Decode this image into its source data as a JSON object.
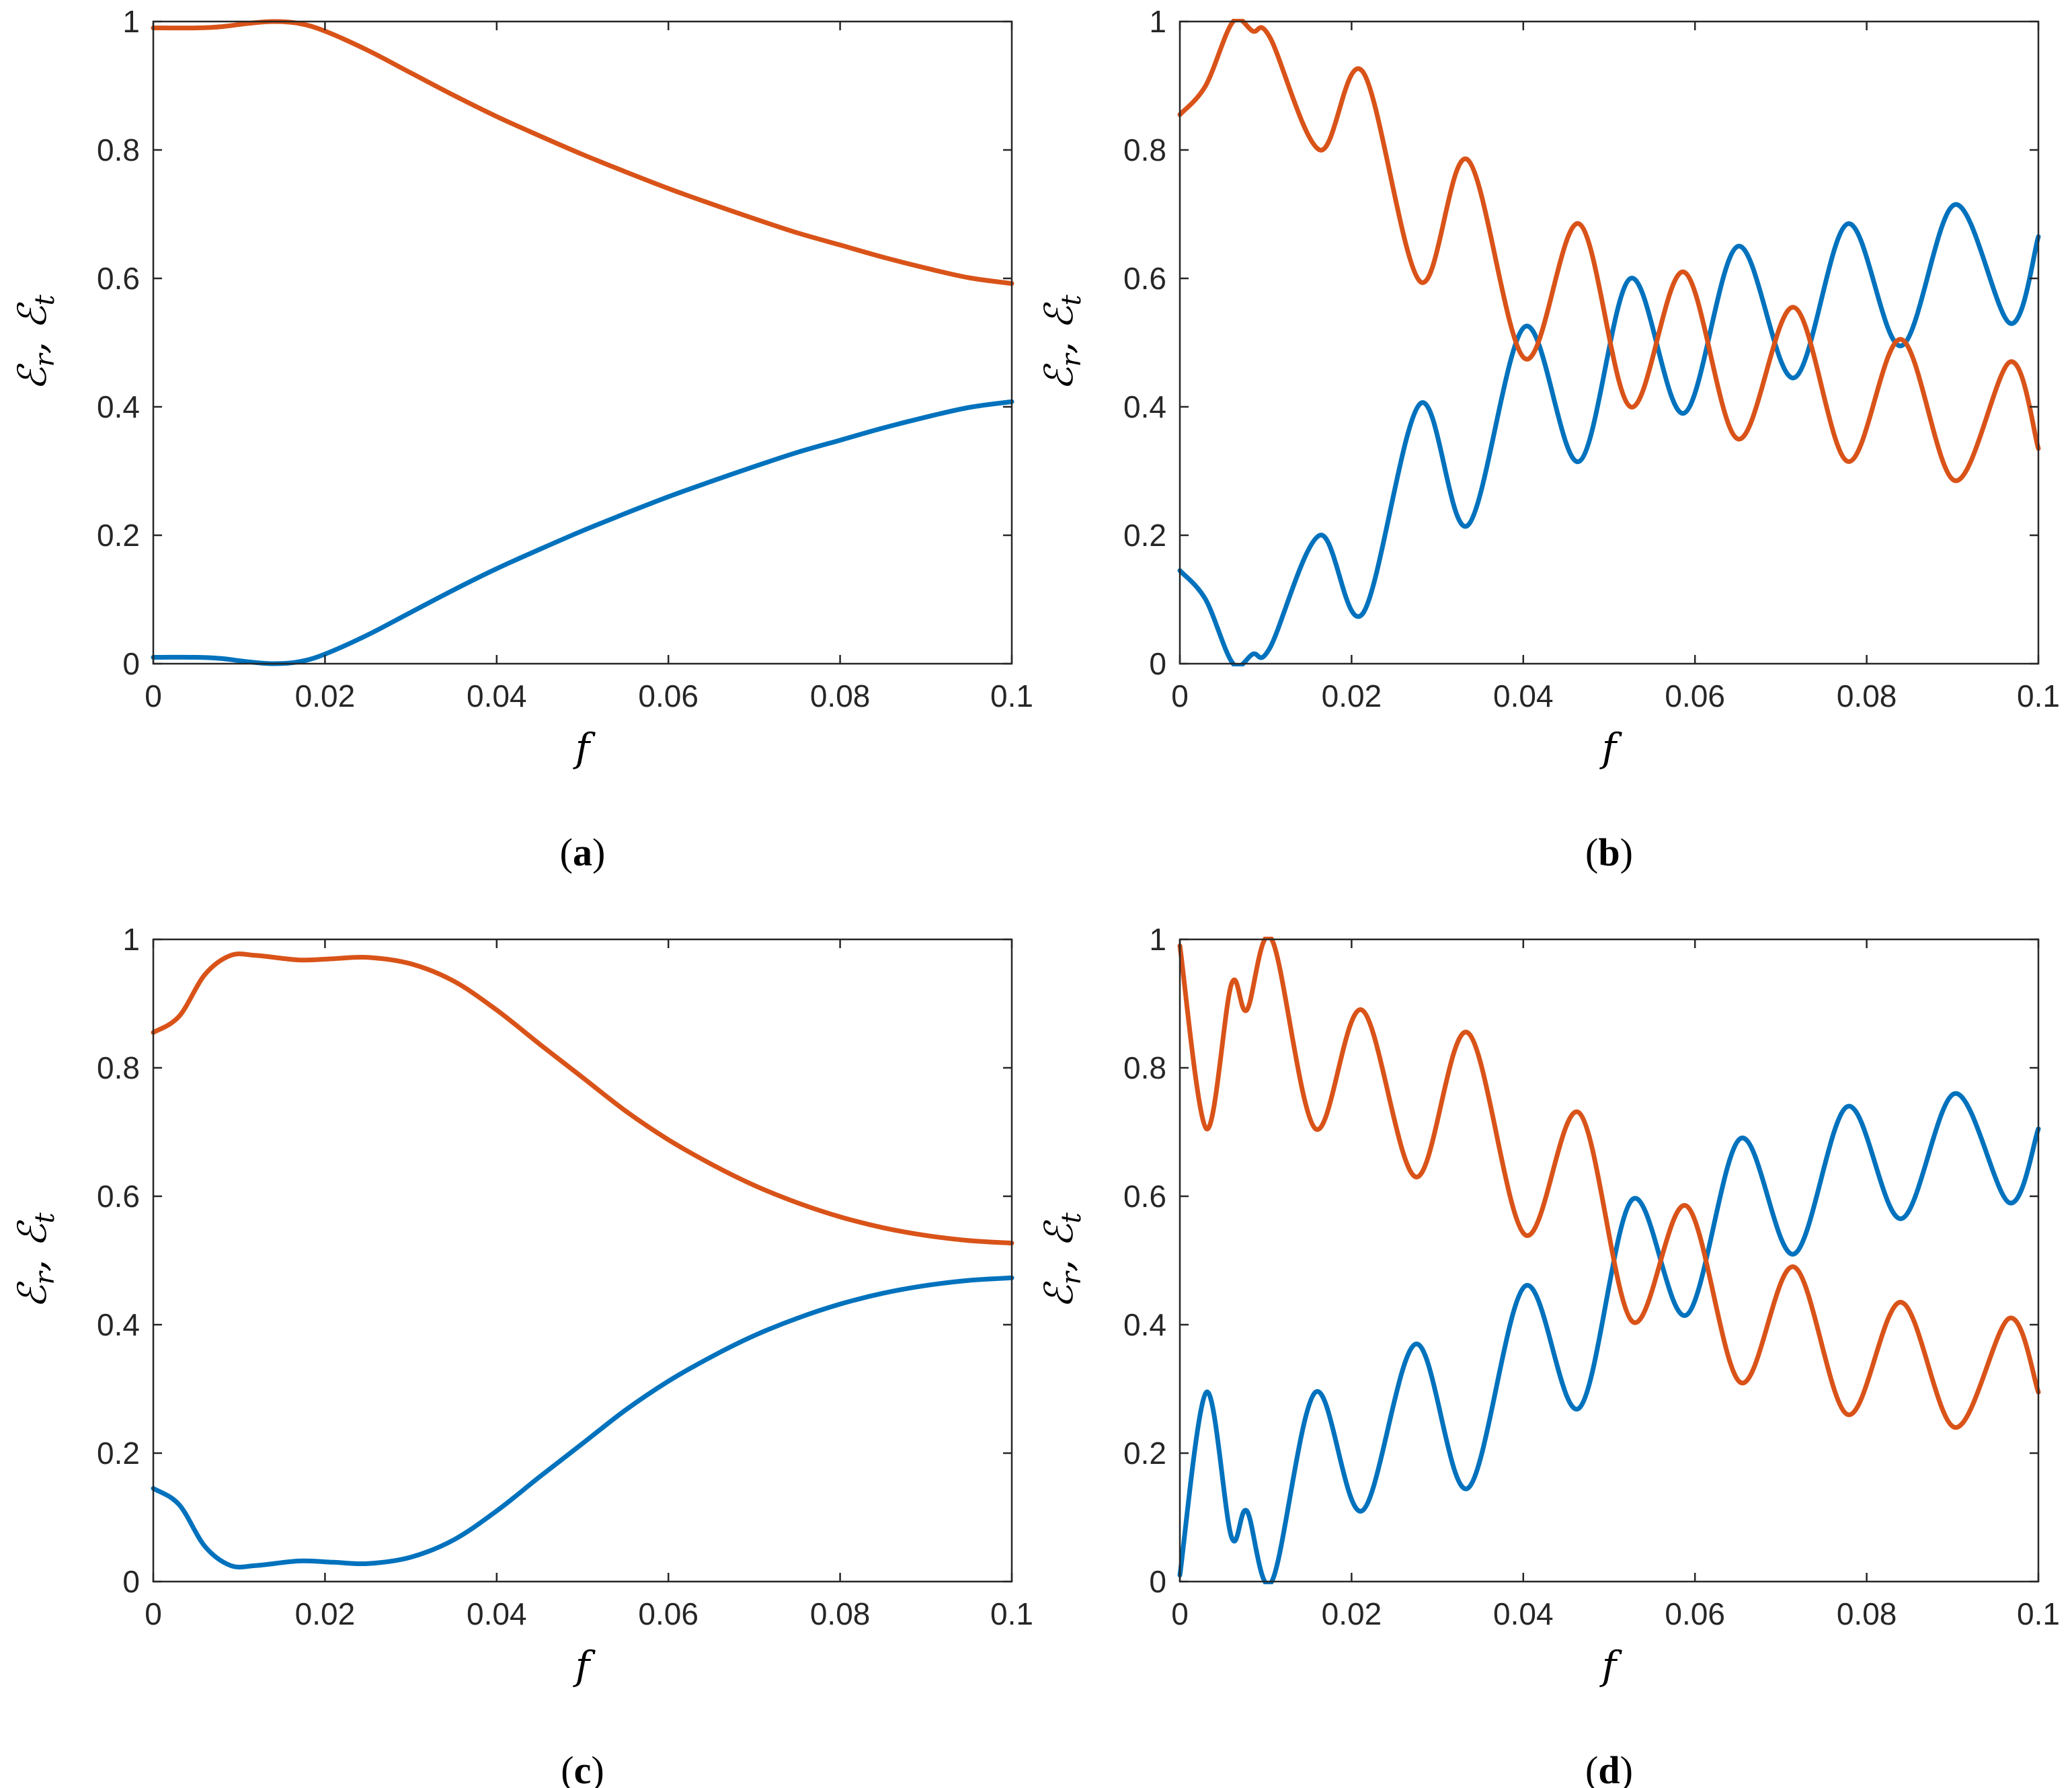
{
  "colors": {
    "blue": "#0072BD",
    "orange": "#D95319"
  },
  "chart_data": [
    {
      "type": "line",
      "panel_label": "a",
      "xlabel": "f",
      "ylabel": {
        "main": "ℰ",
        "sub1": "r",
        "sep": ", ",
        "sub2": "t"
      },
      "xlim": [
        0,
        0.1
      ],
      "ylim": [
        0,
        1
      ],
      "xticks": [
        0,
        0.02,
        0.04,
        0.06,
        0.08,
        0.1
      ],
      "xtick_labels": [
        "0",
        "0.02",
        "0.04",
        "0.06",
        "0.08",
        "0.1"
      ],
      "yticks": [
        0,
        0.2,
        0.4,
        0.6,
        0.8,
        1
      ],
      "ytick_labels": [
        "0",
        "0.2",
        "0.4",
        "0.6",
        "0.8",
        "1"
      ],
      "grid": false,
      "series": [
        {
          "color": "#0072BD",
          "x": [
            0,
            0.005,
            0.008,
            0.011,
            0.014,
            0.017,
            0.02,
            0.025,
            0.03,
            0.035,
            0.04,
            0.045,
            0.05,
            0.055,
            0.06,
            0.065,
            0.07,
            0.075,
            0.08,
            0.085,
            0.09,
            0.095,
            0.1
          ],
          "y": [
            0.01,
            0.01,
            0.008,
            0.003,
            0.0,
            0.003,
            0.015,
            0.045,
            0.08,
            0.115,
            0.148,
            0.178,
            0.207,
            0.234,
            0.26,
            0.284,
            0.307,
            0.329,
            0.348,
            0.367,
            0.384,
            0.399,
            0.408
          ]
        },
        {
          "color": "#D95319",
          "x": [
            0,
            0.005,
            0.008,
            0.011,
            0.014,
            0.017,
            0.02,
            0.025,
            0.03,
            0.035,
            0.04,
            0.045,
            0.05,
            0.055,
            0.06,
            0.065,
            0.07,
            0.075,
            0.08,
            0.085,
            0.09,
            0.095,
            0.1
          ],
          "y": [
            0.99,
            0.99,
            0.992,
            0.997,
            1.0,
            0.997,
            0.985,
            0.955,
            0.92,
            0.885,
            0.852,
            0.822,
            0.793,
            0.766,
            0.74,
            0.716,
            0.693,
            0.671,
            0.652,
            0.633,
            0.616,
            0.601,
            0.592
          ]
        }
      ]
    },
    {
      "type": "line",
      "panel_label": "b",
      "xlabel": "f",
      "ylabel": {
        "main": "ℰ",
        "sub1": "r",
        "sep": ", ",
        "sub2": "t"
      },
      "xlim": [
        0,
        0.1
      ],
      "ylim": [
        0,
        1
      ],
      "xticks": [
        0,
        0.02,
        0.04,
        0.06,
        0.08,
        0.1
      ],
      "xtick_labels": [
        "0",
        "0.02",
        "0.04",
        "0.06",
        "0.08",
        "0.1"
      ],
      "yticks": [
        0,
        0.2,
        0.4,
        0.6,
        0.8,
        1
      ],
      "ytick_labels": [
        "0",
        "0.2",
        "0.4",
        "0.6",
        "0.8",
        "1"
      ],
      "grid": false,
      "series": [
        {
          "color": "#0072BD",
          "x": [
            0,
            0.003,
            0.0062,
            0.0085,
            0.0105,
            0.0163,
            0.0213,
            0.028,
            0.0335,
            0.0402,
            0.0465,
            0.0525,
            0.0587,
            0.065,
            0.0715,
            0.0778,
            0.084,
            0.0903,
            0.0967,
            0.1
          ],
          "y": [
            0.145,
            0.1,
            0.0,
            0.015,
            0.025,
            0.2,
            0.078,
            0.405,
            0.215,
            0.525,
            0.315,
            0.6,
            0.39,
            0.65,
            0.445,
            0.685,
            0.495,
            0.715,
            0.53,
            0.665
          ]
        },
        {
          "color": "#D95319",
          "x": [
            0,
            0.003,
            0.0062,
            0.0085,
            0.0105,
            0.0163,
            0.0213,
            0.028,
            0.0335,
            0.0402,
            0.0465,
            0.0525,
            0.0587,
            0.065,
            0.0715,
            0.0778,
            0.084,
            0.0903,
            0.0967,
            0.1
          ],
          "y": [
            0.855,
            0.9,
            1.0,
            0.985,
            0.975,
            0.8,
            0.922,
            0.595,
            0.785,
            0.475,
            0.685,
            0.4,
            0.61,
            0.35,
            0.555,
            0.315,
            0.505,
            0.285,
            0.47,
            0.335
          ]
        }
      ]
    },
    {
      "type": "line",
      "panel_label": "c",
      "xlabel": "f",
      "ylabel": {
        "main": "ℰ",
        "sub1": "r",
        "sep": ", ",
        "sub2": "t"
      },
      "xlim": [
        0,
        0.1
      ],
      "ylim": [
        0,
        1
      ],
      "xticks": [
        0,
        0.02,
        0.04,
        0.06,
        0.08,
        0.1
      ],
      "xtick_labels": [
        "0",
        "0.02",
        "0.04",
        "0.06",
        "0.08",
        "0.1"
      ],
      "yticks": [
        0,
        0.2,
        0.4,
        0.6,
        0.8,
        1
      ],
      "ytick_labels": [
        "0",
        "0.2",
        "0.4",
        "0.6",
        "0.8",
        "1"
      ],
      "grid": false,
      "series": [
        {
          "color": "#0072BD",
          "x": [
            0,
            0.003,
            0.006,
            0.009,
            0.012,
            0.017,
            0.021,
            0.025,
            0.03,
            0.035,
            0.04,
            0.045,
            0.05,
            0.055,
            0.06,
            0.065,
            0.07,
            0.075,
            0.08,
            0.085,
            0.09,
            0.095,
            0.1
          ],
          "y": [
            0.145,
            0.12,
            0.055,
            0.025,
            0.025,
            0.032,
            0.03,
            0.028,
            0.038,
            0.065,
            0.11,
            0.163,
            0.215,
            0.267,
            0.312,
            0.35,
            0.383,
            0.41,
            0.432,
            0.449,
            0.461,
            0.469,
            0.473
          ]
        },
        {
          "color": "#D95319",
          "x": [
            0,
            0.003,
            0.006,
            0.009,
            0.012,
            0.017,
            0.021,
            0.025,
            0.03,
            0.035,
            0.04,
            0.045,
            0.05,
            0.055,
            0.06,
            0.065,
            0.07,
            0.075,
            0.08,
            0.085,
            0.09,
            0.095,
            0.1
          ],
          "y": [
            0.855,
            0.88,
            0.945,
            0.975,
            0.975,
            0.968,
            0.97,
            0.972,
            0.962,
            0.935,
            0.89,
            0.837,
            0.785,
            0.733,
            0.688,
            0.65,
            0.617,
            0.59,
            0.568,
            0.551,
            0.539,
            0.531,
            0.527
          ]
        }
      ]
    },
    {
      "type": "line",
      "panel_label": "d",
      "xlabel": "f",
      "ylabel": {
        "main": "ℰ",
        "sub1": "r",
        "sep": ", ",
        "sub2": "t"
      },
      "xlim": [
        0,
        0.1
      ],
      "ylim": [
        0,
        1
      ],
      "xticks": [
        0,
        0.02,
        0.04,
        0.06,
        0.08,
        0.1
      ],
      "xtick_labels": [
        "0",
        "0.02",
        "0.04",
        "0.06",
        "0.08",
        "0.1"
      ],
      "yticks": [
        0,
        0.2,
        0.4,
        0.6,
        0.8,
        1
      ],
      "ytick_labels": [
        "0",
        "0.2",
        "0.4",
        "0.6",
        "0.8",
        "1"
      ],
      "grid": false,
      "series": [
        {
          "color": "#0072BD",
          "x": [
            0,
            0.0031,
            0.006,
            0.0078,
            0.0107,
            0.0158,
            0.0212,
            0.0275,
            0.0335,
            0.0402,
            0.0465,
            0.0527,
            0.059,
            0.0653,
            0.0715,
            0.0778,
            0.084,
            0.0903,
            0.0966,
            0.1
          ],
          "y": [
            0.01,
            0.295,
            0.07,
            0.11,
            0.0,
            0.295,
            0.11,
            0.37,
            0.145,
            0.46,
            0.27,
            0.595,
            0.415,
            0.69,
            0.51,
            0.74,
            0.565,
            0.76,
            0.59,
            0.705
          ]
        },
        {
          "color": "#D95319",
          "x": [
            0,
            0.0031,
            0.006,
            0.0078,
            0.0107,
            0.0158,
            0.0212,
            0.0275,
            0.0335,
            0.0402,
            0.0465,
            0.0527,
            0.059,
            0.0653,
            0.0715,
            0.0778,
            0.084,
            0.0903,
            0.0966,
            0.1
          ],
          "y": [
            0.99,
            0.705,
            0.93,
            0.89,
            1.0,
            0.705,
            0.89,
            0.63,
            0.855,
            0.54,
            0.73,
            0.405,
            0.585,
            0.31,
            0.49,
            0.26,
            0.435,
            0.24,
            0.41,
            0.295
          ]
        }
      ]
    }
  ]
}
